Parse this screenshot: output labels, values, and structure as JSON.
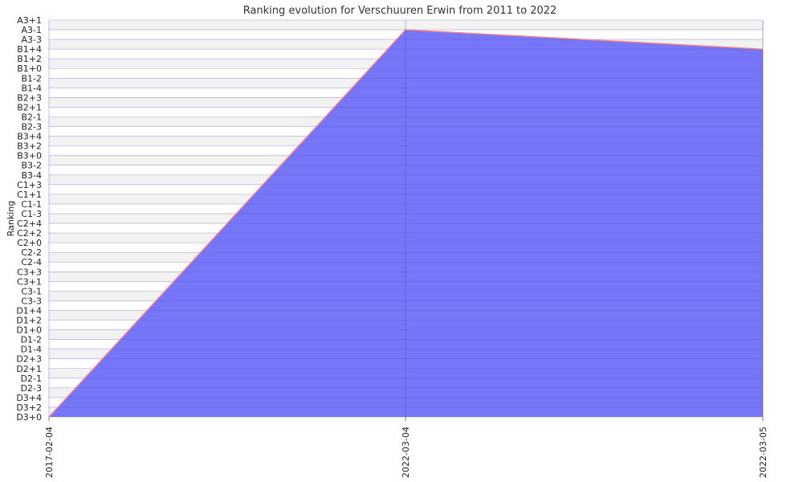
{
  "chart_data": {
    "type": "area",
    "title": "Ranking evolution for Verschuuren Erwin from 2011 to 2022",
    "xlabel": "",
    "ylabel": "Ranking",
    "y_categories": [
      "D3+0",
      "D3+2",
      "D3+4",
      "D2-3",
      "D2-1",
      "D2+1",
      "D2+3",
      "D1-4",
      "D1-2",
      "D1+0",
      "D1+2",
      "D1+4",
      "C3-3",
      "C3-1",
      "C3+1",
      "C3+3",
      "C2-4",
      "C2-2",
      "C2+0",
      "C2+2",
      "C2+4",
      "C1-3",
      "C1-1",
      "C1+1",
      "C1+3",
      "B3-4",
      "B3-2",
      "B3+0",
      "B3+2",
      "B3+4",
      "B2-3",
      "B2-1",
      "B2+1",
      "B2+3",
      "B1-4",
      "B1-2",
      "B1+0",
      "B1+2",
      "B1+4",
      "A3-3",
      "A3-1",
      "A3+1"
    ],
    "x": [
      "2017-02-04",
      "2022-03-04",
      "2022-03-05"
    ],
    "series": [
      {
        "values": [
          "D3+0",
          "A3-1",
          "B1+4"
        ]
      }
    ],
    "grid": true,
    "colors": {
      "fill": "#6f6ff5",
      "line": "#ff8080",
      "band": "#f2f2f2",
      "grid": "#d8d8d8"
    }
  }
}
